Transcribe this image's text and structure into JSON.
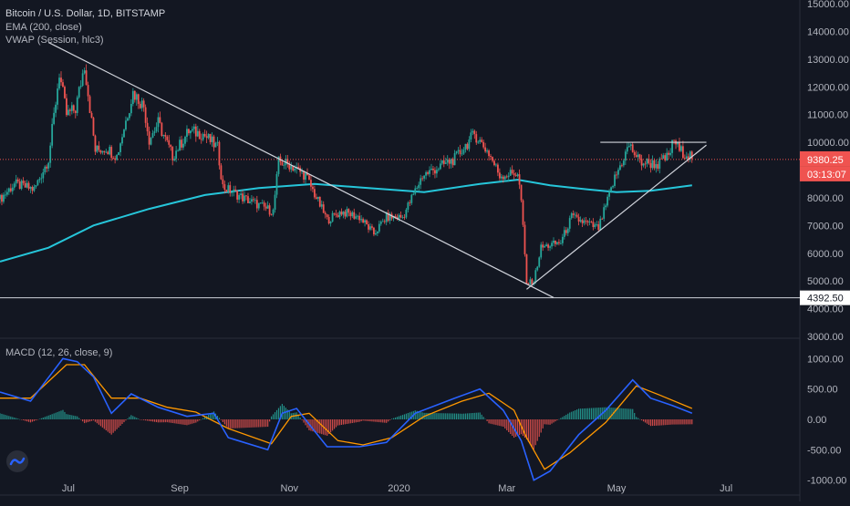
{
  "legend": {
    "title": "Bitcoin / U.S. Dollar, 1D, BITSTAMP",
    "ema": "EMA (200, close)",
    "vwap": "VWAP (Session, hlc3)",
    "macd": "MACD (12, 26, close, 9)"
  },
  "colors": {
    "background": "#131722",
    "up": "#26a69a",
    "down": "#ef5350",
    "ema": "#26c6da",
    "macd_line": "#2962ff",
    "signal_line": "#ff9800",
    "axis_text": "#b2b5be",
    "annotation_line": "#d1d4dc"
  },
  "icons": {
    "logo": "tradingview-logo-icon"
  },
  "chart_data": [
    {
      "type": "candlestick",
      "title": "Bitcoin / U.S. Dollar, 1D, BITSTAMP",
      "ylim": [
        3000,
        15000
      ],
      "yticks": [
        "15000.00",
        "14000.00",
        "13000.00",
        "12000.00",
        "11000.00",
        "10000.00",
        "9000.00",
        "8000.00",
        "7000.00",
        "6000.00",
        "5000.00",
        "4000.00",
        "3000.00"
      ],
      "x_labels": [
        "Jul",
        "Sep",
        "Nov",
        "2020",
        "Mar",
        "May",
        "Jul"
      ],
      "x_label_dates": [
        "2019-07-01",
        "2019-09-01",
        "2019-11-01",
        "2020-01-01",
        "2020-03-01",
        "2020-05-01",
        "2020-07-01"
      ],
      "x_range": [
        "2019-05-24",
        "2020-08-11"
      ],
      "close_path": [
        [
          "2019-05-24",
          7950
        ],
        [
          "2019-06-01",
          8500
        ],
        [
          "2019-06-12",
          8300
        ],
        [
          "2019-06-20",
          9400
        ],
        [
          "2019-06-26",
          12500
        ],
        [
          "2019-06-30",
          11000
        ],
        [
          "2019-07-05",
          11200
        ],
        [
          "2019-07-10",
          12800
        ],
        [
          "2019-07-16",
          9700
        ],
        [
          "2019-07-22",
          9800
        ],
        [
          "2019-07-28",
          9500
        ],
        [
          "2019-08-06",
          11800
        ],
        [
          "2019-08-12",
          11300
        ],
        [
          "2019-08-15",
          10100
        ],
        [
          "2019-08-20",
          10700
        ],
        [
          "2019-08-28",
          9500
        ],
        [
          "2019-09-06",
          10400
        ],
        [
          "2019-09-14",
          10300
        ],
        [
          "2019-09-22",
          9800
        ],
        [
          "2019-09-25",
          8400
        ],
        [
          "2019-10-06",
          8000
        ],
        [
          "2019-10-23",
          7500
        ],
        [
          "2019-10-26",
          9300
        ],
        [
          "2019-11-01",
          9200
        ],
        [
          "2019-11-10",
          8800
        ],
        [
          "2019-11-22",
          7200
        ],
        [
          "2019-11-30",
          7500
        ],
        [
          "2019-12-10",
          7300
        ],
        [
          "2019-12-18",
          6700
        ],
        [
          "2019-12-25",
          7300
        ],
        [
          "2020-01-03",
          7300
        ],
        [
          "2020-01-14",
          8800
        ],
        [
          "2020-02-01",
          9400
        ],
        [
          "2020-02-12",
          10300
        ],
        [
          "2020-02-20",
          9600
        ],
        [
          "2020-02-26",
          8800
        ],
        [
          "2020-03-07",
          8900
        ],
        [
          "2020-03-09",
          7900
        ],
        [
          "2020-03-12",
          4900
        ],
        [
          "2020-03-16",
          5000
        ],
        [
          "2020-03-20",
          6200
        ],
        [
          "2020-03-31",
          6400
        ],
        [
          "2020-04-06",
          7300
        ],
        [
          "2020-04-21",
          6900
        ],
        [
          "2020-04-30",
          8700
        ],
        [
          "2020-05-08",
          9900
        ],
        [
          "2020-05-14",
          9300
        ],
        [
          "2020-05-24",
          9200
        ],
        [
          "2020-05-30",
          9500
        ],
        [
          "2020-06-02",
          10100
        ],
        [
          "2020-06-05",
          9700
        ],
        [
          "2020-06-12",
          9500
        ]
      ],
      "ema_path": [
        [
          "2019-05-24",
          5700
        ],
        [
          "2019-06-20",
          6200
        ],
        [
          "2019-07-15",
          7000
        ],
        [
          "2019-08-15",
          7600
        ],
        [
          "2019-09-15",
          8100
        ],
        [
          "2019-10-15",
          8350
        ],
        [
          "2019-11-15",
          8500
        ],
        [
          "2019-12-15",
          8350
        ],
        [
          "2020-01-15",
          8200
        ],
        [
          "2020-02-15",
          8500
        ],
        [
          "2020-03-07",
          8650
        ],
        [
          "2020-03-25",
          8450
        ],
        [
          "2020-04-15",
          8300
        ],
        [
          "2020-05-01",
          8200
        ],
        [
          "2020-05-20",
          8250
        ],
        [
          "2020-06-12",
          8450
        ]
      ],
      "last_price": "9380.25",
      "countdown": "03:13:07",
      "horizontal_line": 4392.5,
      "horizontal_line_label": "4392.50",
      "annotations": [
        {
          "name": "descending-trendline",
          "from": [
            "2019-06-20",
            13600
          ],
          "to": [
            "2020-03-27",
            4400
          ]
        },
        {
          "name": "ascending-trendline",
          "from": [
            "2020-03-12",
            4700
          ],
          "to": [
            "2020-06-20",
            9900
          ]
        },
        {
          "name": "resistance-line",
          "from": [
            "2020-04-22",
            10000
          ],
          "to": [
            "2020-06-20",
            10000
          ]
        }
      ]
    },
    {
      "type": "macd",
      "title": "MACD (12, 26, close, 9)",
      "ylim": [
        -1200,
        1200
      ],
      "yticks": [
        "1000.00",
        "500.00",
        "0.00",
        "-500.00",
        "-1000.00"
      ],
      "macd_path": [
        [
          "2019-05-24",
          450
        ],
        [
          "2019-06-10",
          300
        ],
        [
          "2019-06-28",
          1000
        ],
        [
          "2019-07-06",
          950
        ],
        [
          "2019-07-15",
          700
        ],
        [
          "2019-07-25",
          100
        ],
        [
          "2019-08-05",
          420
        ],
        [
          "2019-08-20",
          200
        ],
        [
          "2019-09-05",
          50
        ],
        [
          "2019-09-20",
          100
        ],
        [
          "2019-09-28",
          -300
        ],
        [
          "2019-10-20",
          -500
        ],
        [
          "2019-10-28",
          100
        ],
        [
          "2019-11-05",
          180
        ],
        [
          "2019-11-22",
          -450
        ],
        [
          "2019-12-10",
          -450
        ],
        [
          "2019-12-25",
          -380
        ],
        [
          "2020-01-10",
          100
        ],
        [
          "2020-02-01",
          350
        ],
        [
          "2020-02-15",
          500
        ],
        [
          "2020-02-28",
          150
        ],
        [
          "2020-03-09",
          -350
        ],
        [
          "2020-03-16",
          -1000
        ],
        [
          "2020-03-25",
          -850
        ],
        [
          "2020-04-10",
          -250
        ],
        [
          "2020-04-25",
          150
        ],
        [
          "2020-05-10",
          650
        ],
        [
          "2020-05-20",
          350
        ],
        [
          "2020-06-01",
          230
        ],
        [
          "2020-06-12",
          100
        ]
      ],
      "signal_path": [
        [
          "2019-05-24",
          350
        ],
        [
          "2019-06-10",
          350
        ],
        [
          "2019-06-30",
          900
        ],
        [
          "2019-07-10",
          900
        ],
        [
          "2019-07-25",
          350
        ],
        [
          "2019-08-10",
          350
        ],
        [
          "2019-08-25",
          200
        ],
        [
          "2019-09-10",
          120
        ],
        [
          "2019-09-28",
          -150
        ],
        [
          "2019-10-22",
          -400
        ],
        [
          "2019-11-02",
          50
        ],
        [
          "2019-11-12",
          100
        ],
        [
          "2019-11-28",
          -350
        ],
        [
          "2019-12-12",
          -420
        ],
        [
          "2019-12-28",
          -300
        ],
        [
          "2020-01-15",
          50
        ],
        [
          "2020-02-05",
          300
        ],
        [
          "2020-02-20",
          430
        ],
        [
          "2020-03-05",
          150
        ],
        [
          "2020-03-12",
          -300
        ],
        [
          "2020-03-22",
          -820
        ],
        [
          "2020-04-05",
          -550
        ],
        [
          "2020-04-25",
          -50
        ],
        [
          "2020-05-12",
          550
        ],
        [
          "2020-05-25",
          400
        ],
        [
          "2020-06-12",
          180
        ]
      ]
    }
  ]
}
